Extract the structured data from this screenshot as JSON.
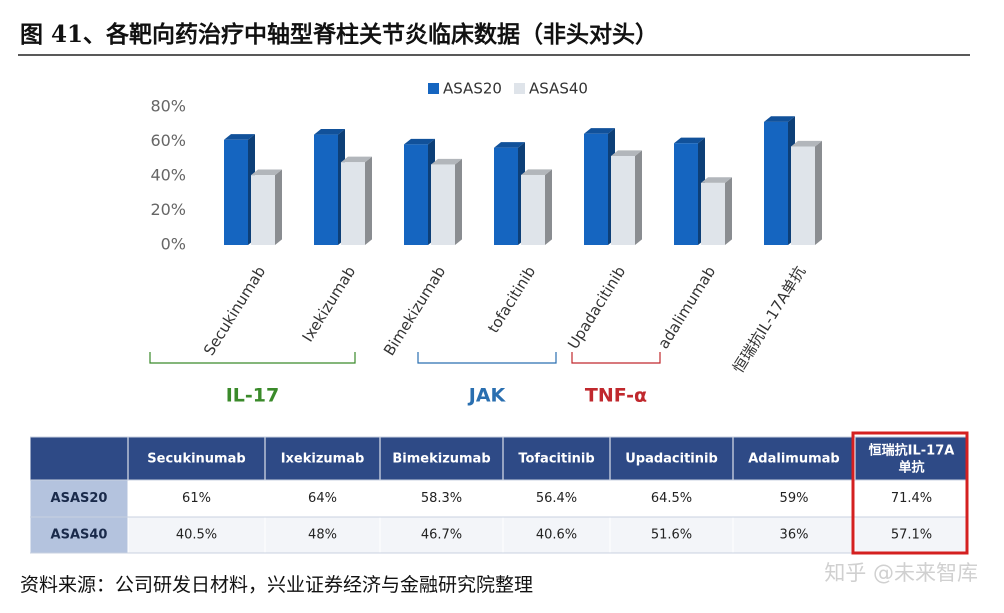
{
  "title": "图 41、各靶向药治疗中轴型脊柱关节炎临床数据（非头对头）",
  "chart_data": {
    "type": "bar",
    "categories": [
      "Secukinumab",
      "Ixekizumab",
      "Bimekizumab",
      "tofacitinib",
      "Upadacitinib",
      "adalimumab",
      "恒瑞抗IL-17A单抗"
    ],
    "series": [
      {
        "name": "ASAS20",
        "color": "#1565c0",
        "values": [
          61,
          64,
          58.3,
          56.4,
          64.5,
          59,
          71.4
        ]
      },
      {
        "name": "ASAS40",
        "color": "#dfe4ea",
        "values": [
          40.5,
          48,
          46.7,
          40.6,
          51.6,
          36,
          57.1
        ]
      }
    ],
    "ylim": [
      0,
      80
    ],
    "yticks": [
      {
        "value": 0,
        "label": "0%"
      },
      {
        "value": 20,
        "label": "20%"
      },
      {
        "value": 40,
        "label": "40%"
      },
      {
        "value": 60,
        "label": "60%"
      },
      {
        "value": 80,
        "label": "80%"
      }
    ],
    "groups": [
      {
        "label": "IL-17",
        "color": "#3a8a2a"
      },
      {
        "label": "JAK",
        "color": "#2a6fb0"
      },
      {
        "label": "TNF-α",
        "color": "#c0282d"
      }
    ]
  },
  "table": {
    "header": [
      "Secukinumab",
      "Ixekizumab",
      "Bimekizumab",
      "Tofacitinib",
      "Upadacitinib",
      "Adalimumab",
      [
        "恒瑞抗IL-17A",
        "单抗"
      ]
    ],
    "rows": [
      [
        "ASAS20",
        "61%",
        "64%",
        "58.3%",
        "56.4%",
        "64.5%",
        "59%",
        "71.4%"
      ],
      [
        "ASAS40",
        "40.5%",
        "48%",
        "46.7%",
        "40.6%",
        "51.6%",
        "36%",
        "57.1%"
      ]
    ]
  },
  "source": "资料来源：公司研发日材料，兴业证券经济与金融研究院整理",
  "watermark": "知乎 @未来智库"
}
